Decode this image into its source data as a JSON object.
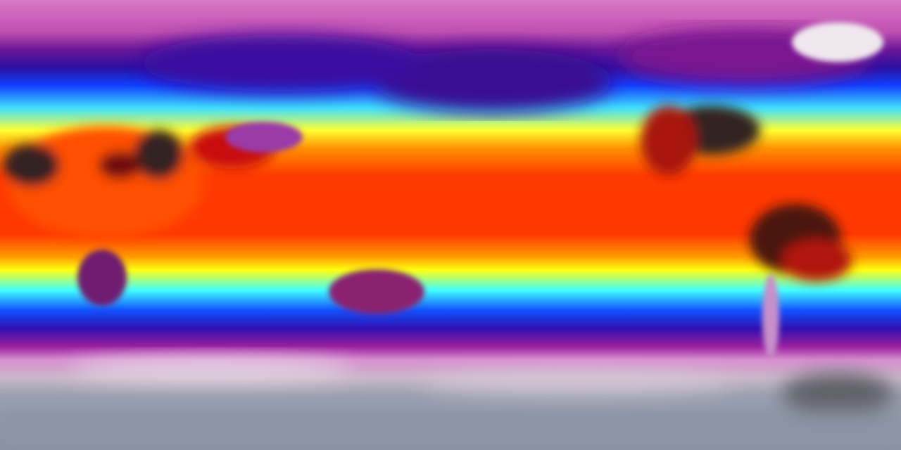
{
  "map": {
    "colormap": {
      "polar_pink": "#d070c0",
      "purple": "#8a1a9a",
      "deep_blue": "#2a10a0",
      "blue": "#1040ff",
      "cyan": "#40e0ff",
      "yellow": "#ffff20",
      "orange": "#ff8000",
      "red": "#ff3000",
      "dark_hot": "#301818",
      "white": "#f0e8ee",
      "antarctic_grey": "#8c94a4"
    }
  }
}
